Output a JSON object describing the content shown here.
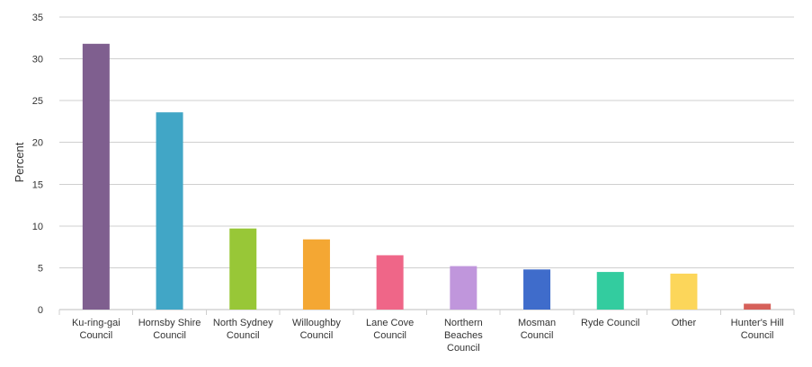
{
  "chart_data": {
    "type": "bar",
    "ylabel": "Percent",
    "xlabel": "",
    "ylim": [
      0,
      35
    ],
    "yticks": [
      0,
      5,
      10,
      15,
      20,
      25,
      30,
      35
    ],
    "grid": true,
    "legend": "none",
    "categories": [
      [
        "Ku-ring-gai",
        "Council"
      ],
      [
        "Hornsby Shire",
        "Council"
      ],
      [
        "North Sydney",
        "Council"
      ],
      [
        "Willoughby",
        "Council"
      ],
      [
        "Lane Cove",
        "Council"
      ],
      [
        "Northern",
        "Beaches",
        "Council"
      ],
      [
        "Mosman",
        "Council"
      ],
      [
        "Ryde Council"
      ],
      [
        "Other"
      ],
      [
        "Hunter's Hill",
        "Council"
      ]
    ],
    "values": [
      31.8,
      23.6,
      9.7,
      8.4,
      6.5,
      5.2,
      4.8,
      4.5,
      4.3,
      0.7
    ],
    "colors": [
      "#7f5f8f",
      "#41a6c6",
      "#98c737",
      "#f4a733",
      "#ef6688",
      "#c096dc",
      "#3f6ccb",
      "#33cc9f",
      "#fcd65a",
      "#d6605a"
    ]
  }
}
